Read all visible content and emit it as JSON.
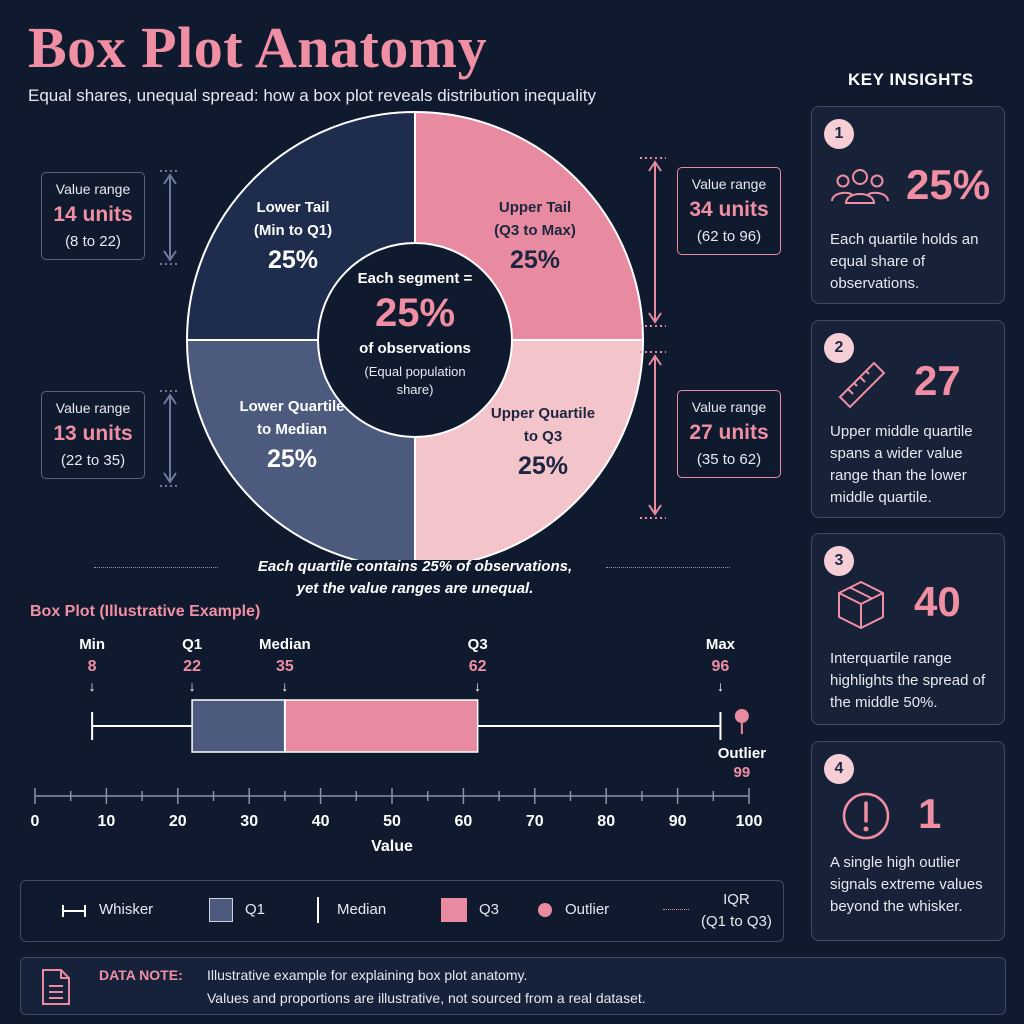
{
  "header": {
    "title": "Box Plot Anatomy",
    "subtitle": "Equal shares, unequal spread: how a box plot reveals distribution inequality"
  },
  "colors": {
    "background": "#0f1a2e",
    "accent_pink": "#f08fa3",
    "lower_tail": "#1e2c4d",
    "lower_quartile": "#4c5a7d",
    "upper_quartile": "#f4c4cb",
    "upper_tail": "#e98ba0"
  },
  "donut": {
    "segments": [
      {
        "name_line1": "Upper Tail",
        "name_line2": "(Q3 to Max)",
        "pct": "25%",
        "share": 25
      },
      {
        "name_line1": "Upper Quartile",
        "name_line2": "to Q3",
        "pct": "25%",
        "share": 25
      },
      {
        "name_line1": "Lower Quartile",
        "name_line2": "to Median",
        "pct": "25%",
        "share": 25
      },
      {
        "name_line1": "Lower Tail",
        "name_line2": "(Min to Q1)",
        "pct": "25%",
        "share": 25
      }
    ],
    "center": {
      "top": "Each segment =",
      "pct": "25%",
      "obs": "of observations",
      "note_line1": "(Equal population",
      "note_line2": "share)"
    }
  },
  "range_cards": [
    {
      "label": "Value range",
      "value": "14 units",
      "span": "(8 to 22)"
    },
    {
      "label": "Value range",
      "value": "13 units",
      "span": "(22 to 35)"
    },
    {
      "label": "Value range",
      "value": "34 units",
      "span": "(62 to 96)"
    },
    {
      "label": "Value range",
      "value": "27 units",
      "span": "(35 to 62)"
    }
  ],
  "caption": {
    "line1": "Each quartile contains 25% of observations,",
    "line2": "yet the value ranges are unequal."
  },
  "boxplot": {
    "title": "Box Plot (Illustrative Example)",
    "stats": [
      {
        "name": "Min",
        "value": "8"
      },
      {
        "name": "Q1",
        "value": "22"
      },
      {
        "name": "Median",
        "value": "35"
      },
      {
        "name": "Q3",
        "value": "62"
      },
      {
        "name": "Max",
        "value": "96"
      }
    ],
    "outlier": {
      "label": "Outlier",
      "value": "99"
    }
  },
  "chart_data": {
    "type": "box",
    "title": "Box Plot (Illustrative Example)",
    "xlabel": "Value",
    "xlim": [
      0,
      100
    ],
    "ticks": [
      0,
      10,
      20,
      30,
      40,
      50,
      60,
      70,
      80,
      90,
      100
    ],
    "min": 8,
    "q1": 22,
    "median": 35,
    "q3": 62,
    "max": 96,
    "outliers": [
      99
    ]
  },
  "legend": {
    "items": [
      {
        "label": "Whisker",
        "icon": "whisker-icon"
      },
      {
        "label": "Q1",
        "icon": "square-icon"
      },
      {
        "label": "Median",
        "icon": "line-icon"
      },
      {
        "label": "Q3",
        "icon": "square-icon"
      },
      {
        "label": "Outlier",
        "icon": "dot-icon"
      }
    ],
    "iqr_line1": "IQR",
    "iqr_line2": "(Q1 to Q3)"
  },
  "insights": {
    "title": "KEY INSIGHTS",
    "cards": [
      {
        "num": "1",
        "value": "25%",
        "icon": "people-icon",
        "text": "Each quartile holds an equal share of observations."
      },
      {
        "num": "2",
        "value": "27",
        "icon": "ruler-icon",
        "text": "Upper middle quartile spans a wider value range than the lower middle quartile."
      },
      {
        "num": "3",
        "value": "40",
        "icon": "box-icon",
        "text": "Interquartile range highlights the spread of the middle 50%."
      },
      {
        "num": "4",
        "value": "1",
        "icon": "alert-icon",
        "text": "A single high outlier signals extreme values beyond the whisker."
      }
    ]
  },
  "data_note": {
    "label": "DATA NOTE:",
    "line1": "Illustrative example for explaining box plot anatomy.",
    "line2": "Values and proportions are illustrative, not sourced from a real dataset."
  }
}
